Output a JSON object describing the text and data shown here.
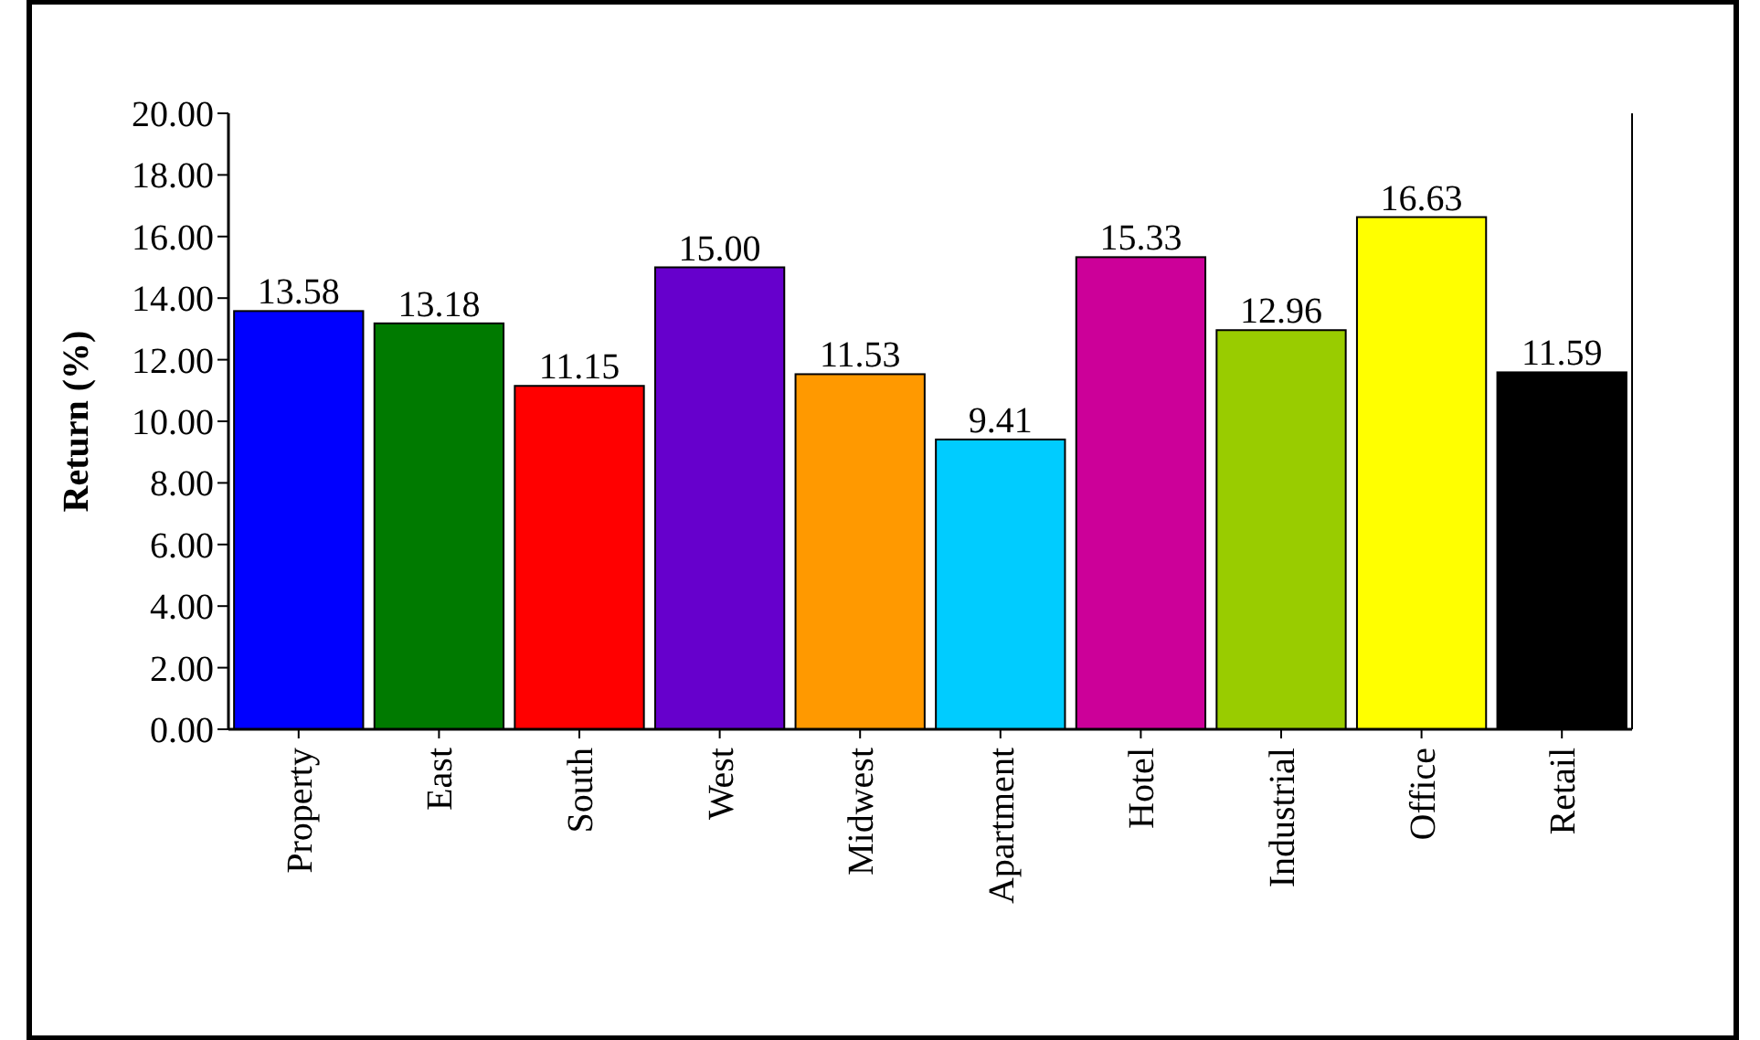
{
  "chart_data": {
    "type": "bar",
    "ylabel": "Return (%)",
    "categories": [
      "Property",
      "East",
      "South",
      "West",
      "Midwest",
      "Apartment",
      "Hotel",
      "Industrial",
      "Office",
      "Retail"
    ],
    "values": [
      13.58,
      13.18,
      11.15,
      15.0,
      11.53,
      9.41,
      15.33,
      12.96,
      16.63,
      11.59
    ],
    "value_labels": [
      "13.58",
      "13.18",
      "11.15",
      "15.00",
      "11.53",
      "9.41",
      "15.33",
      "12.96",
      "16.63",
      "11.59"
    ],
    "colors": [
      "#0000ff",
      "#007a00",
      "#ff0000",
      "#6600cc",
      "#ff9900",
      "#00ccff",
      "#cc0099",
      "#99cc00",
      "#ffff00",
      "#000000"
    ],
    "ylim": [
      0,
      20
    ],
    "yticks": [
      {
        "value": 0,
        "label": "0.00"
      },
      {
        "value": 2,
        "label": "2.00"
      },
      {
        "value": 4,
        "label": "4.00"
      },
      {
        "value": 6,
        "label": "6.00"
      },
      {
        "value": 8,
        "label": "8.00"
      },
      {
        "value": 10,
        "label": "10.00"
      },
      {
        "value": 12,
        "label": "12.00"
      },
      {
        "value": 14,
        "label": "14.00"
      },
      {
        "value": 16,
        "label": "16.00"
      },
      {
        "value": 18,
        "label": "18.00"
      },
      {
        "value": 20,
        "label": "20.00"
      }
    ],
    "grid": false
  }
}
